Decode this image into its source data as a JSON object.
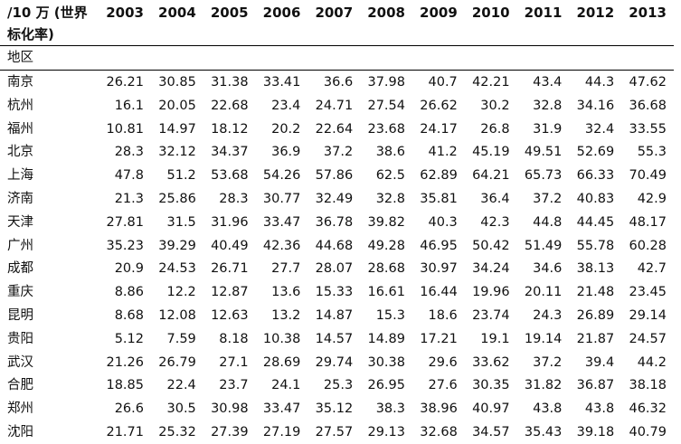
{
  "table": {
    "header_lines": [
      "/10 万 (世界",
      "标化率)"
    ],
    "columns": [
      "2003",
      "2004",
      "2005",
      "2006",
      "2007",
      "2008",
      "2009",
      "2010",
      "2011",
      "2012",
      "2013"
    ],
    "group_label": "地区",
    "rows": [
      [
        "南京",
        "26.21",
        "30.85",
        "31.38",
        "33.41",
        "36.6",
        "37.98",
        "40.7",
        "42.21",
        "43.4",
        "44.3",
        "47.62"
      ],
      [
        "杭州",
        "16.1",
        "20.05",
        "22.68",
        "23.4",
        "24.71",
        "27.54",
        "26.62",
        "30.2",
        "32.8",
        "34.16",
        "36.68"
      ],
      [
        "福州",
        "10.81",
        "14.97",
        "18.12",
        "20.2",
        "22.64",
        "23.68",
        "24.17",
        "26.8",
        "31.9",
        "32.4",
        "33.55"
      ],
      [
        "北京",
        "28.3",
        "32.12",
        "34.37",
        "36.9",
        "37.2",
        "38.6",
        "41.2",
        "45.19",
        "49.51",
        "52.69",
        "55.3"
      ],
      [
        "上海",
        "47.8",
        "51.2",
        "53.68",
        "54.26",
        "57.86",
        "62.5",
        "62.89",
        "64.21",
        "65.73",
        "66.33",
        "70.49"
      ],
      [
        "济南",
        "21.3",
        "25.86",
        "28.3",
        "30.77",
        "32.49",
        "32.8",
        "35.81",
        "36.4",
        "37.2",
        "40.83",
        "42.9"
      ],
      [
        "天津",
        "27.81",
        "31.5",
        "31.96",
        "33.47",
        "36.78",
        "39.82",
        "40.3",
        "42.3",
        "44.8",
        "44.45",
        "48.17"
      ],
      [
        "广州",
        "35.23",
        "39.29",
        "40.49",
        "42.36",
        "44.68",
        "49.28",
        "46.95",
        "50.42",
        "51.49",
        "55.78",
        "60.28"
      ],
      [
        "成都",
        "20.9",
        "24.53",
        "26.71",
        "27.7",
        "28.07",
        "28.68",
        "30.97",
        "34.24",
        "34.6",
        "38.13",
        "42.7"
      ],
      [
        "重庆",
        "8.86",
        "12.2",
        "12.87",
        "13.6",
        "15.33",
        "16.61",
        "16.44",
        "19.96",
        "20.11",
        "21.48",
        "23.45"
      ],
      [
        "昆明",
        "8.68",
        "12.08",
        "12.63",
        "13.2",
        "14.87",
        "15.3",
        "18.6",
        "23.74",
        "24.3",
        "26.89",
        "29.14"
      ],
      [
        "贵阳",
        "5.12",
        "7.59",
        "8.18",
        "10.38",
        "14.57",
        "14.89",
        "17.21",
        "19.1",
        "19.14",
        "21.87",
        "24.57"
      ],
      [
        "武汉",
        "21.26",
        "26.79",
        "27.1",
        "28.69",
        "29.74",
        "30.38",
        "29.6",
        "33.62",
        "37.2",
        "39.4",
        "44.2"
      ],
      [
        "合肥",
        "18.85",
        "22.4",
        "23.7",
        "24.1",
        "25.3",
        "26.95",
        "27.6",
        "30.35",
        "31.82",
        "36.87",
        "38.18"
      ],
      [
        "郑州",
        "26.6",
        "30.5",
        "30.98",
        "33.47",
        "35.12",
        "38.3",
        "38.96",
        "40.97",
        "43.8",
        "43.8",
        "46.32"
      ],
      [
        "沈阳",
        "21.71",
        "25.32",
        "27.39",
        "27.19",
        "27.57",
        "29.13",
        "32.68",
        "34.57",
        "35.43",
        "39.18",
        "40.79"
      ]
    ]
  }
}
